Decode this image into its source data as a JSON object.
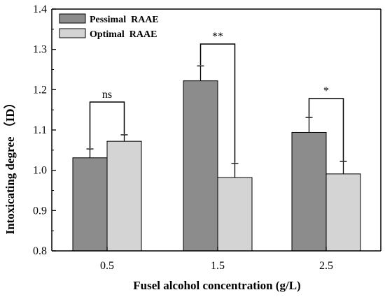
{
  "chart_data": {
    "type": "bar",
    "xlabel": "Fusel alcohol concentration (g/L)",
    "ylabel": "Intoxicating degree （ID）",
    "categories": [
      "0.5",
      "1.5",
      "2.5"
    ],
    "ylim": [
      0.8,
      1.4
    ],
    "yticks": [
      "0.8",
      "0.9",
      "1.0",
      "1.1",
      "1.2",
      "1.3",
      "1.4"
    ],
    "yticks_values": [
      0.8,
      0.9,
      1.0,
      1.1,
      1.2,
      1.3,
      1.4
    ],
    "grid": false,
    "legend_position": "top-left",
    "series": [
      {
        "name": "Pessimal  RAAE",
        "values": [
          1.031,
          1.222,
          1.094
        ],
        "errors": [
          0.022,
          0.037,
          0.037
        ],
        "color": "#8c8c8c"
      },
      {
        "name": "Optimal  RAAE",
        "values": [
          1.072,
          0.982,
          0.991
        ],
        "errors": [
          0.016,
          0.035,
          0.031
        ],
        "color": "#d4d4d4"
      }
    ],
    "significance": [
      {
        "category": "0.5",
        "label": "ns"
      },
      {
        "category": "1.5",
        "label": "**"
      },
      {
        "category": "2.5",
        "label": "*"
      }
    ]
  }
}
